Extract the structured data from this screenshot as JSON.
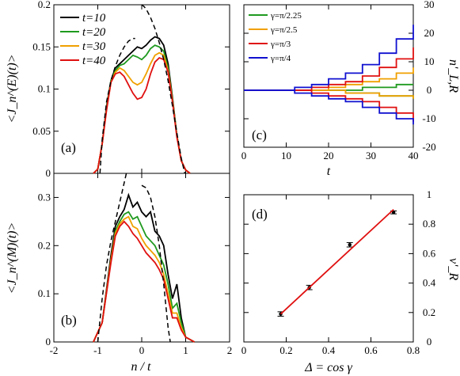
{
  "chart_data": [
    {
      "panel": "(a)",
      "type": "line",
      "ylabel": "<J_n^(E)(t)>",
      "xlim": [
        -2,
        2
      ],
      "ylim": [
        0,
        0.2
      ],
      "xticks": [
        -2,
        -1,
        0,
        1,
        2
      ],
      "xtick_labels": [
        "",
        "",
        "",
        "",
        ""
      ],
      "yticks": [
        0,
        0.05,
        0.1,
        0.15,
        0.2
      ],
      "ytick_labels": [
        "0",
        "0.05",
        "0.1",
        "0.15",
        "0.2"
      ],
      "legend": "top-left",
      "series": [
        {
          "name": "t=10",
          "color": "#000000",
          "x": [
            -1.1,
            -1.0,
            -0.9,
            -0.8,
            -0.7,
            -0.6,
            -0.5,
            -0.4,
            -0.3,
            -0.2,
            -0.1,
            0.0,
            0.1,
            0.2,
            0.3,
            0.4,
            0.5,
            0.6,
            0.7,
            0.8,
            0.9,
            1.0,
            1.1
          ],
          "y": [
            0,
            0.005,
            0.035,
            0.08,
            0.11,
            0.125,
            0.13,
            0.135,
            0.14,
            0.145,
            0.15,
            0.148,
            0.152,
            0.158,
            0.162,
            0.16,
            0.152,
            0.13,
            0.09,
            0.045,
            0.015,
            0.004,
            0
          ]
        },
        {
          "name": "t=20",
          "color": "#1f9a1f",
          "x": [
            -1.1,
            -1.0,
            -0.9,
            -0.8,
            -0.7,
            -0.6,
            -0.5,
            -0.4,
            -0.3,
            -0.2,
            -0.1,
            0.0,
            0.1,
            0.2,
            0.3,
            0.4,
            0.5,
            0.6,
            0.7,
            0.8,
            0.9,
            1.0,
            1.1
          ],
          "y": [
            0,
            0.005,
            0.035,
            0.078,
            0.11,
            0.122,
            0.128,
            0.13,
            0.135,
            0.14,
            0.138,
            0.135,
            0.14,
            0.148,
            0.152,
            0.15,
            0.145,
            0.125,
            0.088,
            0.045,
            0.015,
            0.004,
            0
          ]
        },
        {
          "name": "t=30",
          "color": "#f0a000",
          "x": [
            -1.1,
            -1.0,
            -0.9,
            -0.8,
            -0.7,
            -0.6,
            -0.5,
            -0.4,
            -0.3,
            -0.2,
            -0.1,
            0.0,
            0.1,
            0.2,
            0.3,
            0.4,
            0.5,
            0.6,
            0.7,
            0.8,
            0.9,
            1.0,
            1.1
          ],
          "y": [
            0,
            0.005,
            0.035,
            0.076,
            0.108,
            0.12,
            0.125,
            0.122,
            0.115,
            0.108,
            0.105,
            0.108,
            0.118,
            0.13,
            0.14,
            0.143,
            0.14,
            0.122,
            0.086,
            0.044,
            0.015,
            0.004,
            0
          ]
        },
        {
          "name": "t=40",
          "color": "#e01010",
          "x": [
            -1.1,
            -1.0,
            -0.9,
            -0.8,
            -0.7,
            -0.6,
            -0.5,
            -0.4,
            -0.3,
            -0.2,
            -0.1,
            0.0,
            0.1,
            0.2,
            0.3,
            0.4,
            0.5,
            0.6,
            0.7,
            0.8,
            0.9,
            1.0,
            1.1
          ],
          "y": [
            0,
            0.005,
            0.035,
            0.075,
            0.108,
            0.118,
            0.12,
            0.115,
            0.105,
            0.095,
            0.088,
            0.09,
            0.1,
            0.118,
            0.132,
            0.137,
            0.135,
            0.12,
            0.085,
            0.043,
            0.015,
            0.004,
            0
          ]
        },
        {
          "name": "",
          "dashed": true,
          "color": "#000000",
          "x": [
            -0.95,
            -0.9,
            -0.8,
            -0.7,
            -0.6,
            -0.5,
            -0.4,
            -0.3,
            -0.2,
            -0.15
          ],
          "y": [
            0.0,
            0.04,
            0.085,
            0.11,
            0.127,
            0.14,
            0.15,
            0.157,
            0.16,
            0.16
          ]
        },
        {
          "name": "",
          "dashed": true,
          "color": "#000000",
          "x": [
            0.0,
            0.05,
            0.1,
            0.2,
            0.3,
            0.4,
            0.5,
            0.6,
            0.7,
            0.8,
            0.9,
            0.98
          ],
          "y": [
            0.2,
            0.198,
            0.195,
            0.185,
            0.172,
            0.155,
            0.135,
            0.11,
            0.08,
            0.048,
            0.018,
            0.0
          ]
        }
      ]
    },
    {
      "panel": "(b)",
      "type": "line",
      "xlabel": "n / t",
      "ylabel": "<J_n^(M)(t)>",
      "xlim": [
        -2,
        2
      ],
      "ylim": [
        0,
        0.35
      ],
      "xticks": [
        -2,
        -1,
        0,
        1,
        2
      ],
      "xtick_labels": [
        "-2",
        "-1",
        "0",
        "1",
        "2"
      ],
      "yticks": [
        0,
        0.1,
        0.2,
        0.3
      ],
      "ytick_labels": [
        "0",
        "0.1",
        "0.2",
        "0.3"
      ],
      "series": [
        {
          "name": "",
          "color": "#000000",
          "x": [
            -1.1,
            -0.9,
            -0.7,
            -0.6,
            -0.5,
            -0.4,
            -0.3,
            -0.2,
            -0.1,
            0.0,
            0.1,
            0.2,
            0.3,
            0.4,
            0.5,
            0.6,
            0.7,
            0.8,
            0.9,
            1.0,
            1.2
          ],
          "y": [
            0,
            0.04,
            0.18,
            0.24,
            0.26,
            0.275,
            0.305,
            0.28,
            0.29,
            0.27,
            0.26,
            0.27,
            0.23,
            0.22,
            0.2,
            0.14,
            0.09,
            0.12,
            0.05,
            0.01,
            0
          ]
        },
        {
          "name": "",
          "color": "#1f9a1f",
          "x": [
            -1.1,
            -0.9,
            -0.7,
            -0.6,
            -0.5,
            -0.4,
            -0.3,
            -0.2,
            -0.1,
            0.0,
            0.1,
            0.2,
            0.3,
            0.4,
            0.5,
            0.6,
            0.7,
            0.8,
            0.9,
            1.0,
            1.2
          ],
          "y": [
            0,
            0.04,
            0.17,
            0.23,
            0.25,
            0.265,
            0.27,
            0.255,
            0.26,
            0.24,
            0.22,
            0.21,
            0.2,
            0.18,
            0.16,
            0.12,
            0.07,
            0.08,
            0.04,
            0.01,
            0
          ]
        },
        {
          "name": "",
          "color": "#f0a000",
          "x": [
            -1.1,
            -0.9,
            -0.7,
            -0.6,
            -0.5,
            -0.4,
            -0.3,
            -0.2,
            -0.1,
            0.0,
            0.1,
            0.2,
            0.3,
            0.4,
            0.5,
            0.6,
            0.7,
            0.8,
            0.9,
            1.0,
            1.2
          ],
          "y": [
            0,
            0.04,
            0.17,
            0.225,
            0.245,
            0.255,
            0.26,
            0.24,
            0.235,
            0.215,
            0.2,
            0.19,
            0.18,
            0.165,
            0.14,
            0.1,
            0.06,
            0.06,
            0.03,
            0.01,
            0
          ]
        },
        {
          "name": "",
          "color": "#e01010",
          "x": [
            -1.1,
            -0.9,
            -0.7,
            -0.6,
            -0.5,
            -0.4,
            -0.3,
            -0.2,
            -0.1,
            0.0,
            0.1,
            0.2,
            0.3,
            0.4,
            0.5,
            0.6,
            0.7,
            0.8,
            0.9,
            1.0,
            1.2
          ],
          "y": [
            0,
            0.04,
            0.165,
            0.22,
            0.24,
            0.25,
            0.24,
            0.225,
            0.215,
            0.2,
            0.185,
            0.175,
            0.165,
            0.15,
            0.13,
            0.09,
            0.05,
            0.05,
            0.025,
            0.01,
            0
          ]
        },
        {
          "name": "",
          "dashed": true,
          "color": "#000000",
          "x": [
            -1.0,
            -0.9,
            -0.8,
            -0.7,
            -0.6,
            -0.5,
            -0.4,
            -0.35
          ],
          "y": [
            0,
            0.09,
            0.16,
            0.21,
            0.25,
            0.29,
            0.33,
            0.35
          ]
        },
        {
          "name": "",
          "dashed": true,
          "color": "#000000",
          "x": [
            0.0,
            0.1,
            0.2,
            0.3,
            0.4,
            0.5,
            0.6,
            0.65
          ],
          "y": [
            0.325,
            0.32,
            0.3,
            0.26,
            0.2,
            0.12,
            0.03,
            0.0
          ]
        }
      ]
    },
    {
      "panel": "(c)",
      "type": "line",
      "xlabel": "t",
      "ylabel": "n'_L,R",
      "xlim": [
        0,
        40
      ],
      "ylim": [
        -20,
        30
      ],
      "xticks": [
        0,
        10,
        20,
        30,
        40
      ],
      "xtick_labels": [
        "0",
        "10",
        "20",
        "30",
        "40"
      ],
      "yticks": [
        -20,
        -10,
        0,
        10,
        20,
        30
      ],
      "ytick_labels": [
        "-20",
        "-10",
        "0",
        "10",
        "20",
        "30"
      ],
      "legend": "top-left",
      "series": [
        {
          "name": "γ=π/2.25",
          "color": "#1f9a1f",
          "x": [
            0,
            20,
            24,
            28,
            32,
            36,
            40
          ],
          "y": [
            0,
            0,
            0,
            1,
            1,
            2,
            2
          ],
          "x2": [
            0,
            20,
            24,
            28,
            32,
            36,
            40
          ],
          "y2": [
            0,
            0,
            -1,
            -1,
            -2,
            -2,
            -3
          ]
        },
        {
          "name": "γ=π/2.5",
          "color": "#f0a000",
          "x": [
            0,
            16,
            20,
            24,
            28,
            32,
            36,
            40
          ],
          "y": [
            0,
            0,
            1,
            2,
            3,
            4,
            6,
            8
          ],
          "x2": [
            0,
            16,
            20,
            24,
            28,
            32,
            36,
            40
          ],
          "y2": [
            0,
            0,
            0,
            -1,
            -1,
            -2,
            -2,
            -3
          ]
        },
        {
          "name": "γ=π/3",
          "color": "#e01010",
          "x": [
            0,
            12,
            16,
            20,
            24,
            28,
            32,
            36,
            40
          ],
          "y": [
            0,
            0,
            1,
            2,
            3,
            5,
            8,
            11,
            15
          ],
          "x2": [
            0,
            12,
            16,
            20,
            24,
            28,
            32,
            36,
            40
          ],
          "y2": [
            0,
            0,
            -1,
            -2,
            -3,
            -4,
            -6,
            -8,
            -11
          ]
        },
        {
          "name": "γ=π/4",
          "color": "#1010d0",
          "x": [
            0,
            8,
            12,
            16,
            20,
            24,
            28,
            32,
            36,
            40
          ],
          "y": [
            0,
            0,
            1,
            2,
            4,
            6,
            9,
            13,
            18,
            23
          ],
          "x2": [
            0,
            8,
            12,
            16,
            20,
            24,
            28,
            32,
            36,
            40
          ],
          "y2": [
            0,
            0,
            -1,
            -2,
            -3,
            -4,
            -6,
            -8,
            -10,
            -12
          ]
        }
      ]
    },
    {
      "panel": "(d)",
      "type": "scatter",
      "xlabel": "Δ = cos γ",
      "ylabel": "v'_R",
      "xlim": [
        0,
        0.8
      ],
      "ylim": [
        0,
        1
      ],
      "xticks": [
        0,
        0.2,
        0.4,
        0.6,
        0.8
      ],
      "xtick_labels": [
        "0",
        "0.2",
        "0.4",
        "0.6",
        "0.8"
      ],
      "yticks": [
        0,
        0.2,
        0.4,
        0.6,
        0.8,
        1
      ],
      "ytick_labels": [
        "0",
        "0.2",
        "0.4",
        "0.6",
        "0.8",
        "1"
      ],
      "series": [
        {
          "name": "",
          "color": "#000000",
          "x": [
            0.174,
            0.309,
            0.5,
            0.707
          ],
          "y": [
            0.19,
            0.37,
            0.66,
            0.88
          ],
          "err": [
            0.015,
            0.015,
            0.015,
            0.01
          ]
        },
        {
          "name": "",
          "fit": true,
          "color": "#e01010",
          "x": [
            0.174,
            0.707
          ],
          "y": [
            0.19,
            0.9
          ]
        }
      ]
    }
  ]
}
